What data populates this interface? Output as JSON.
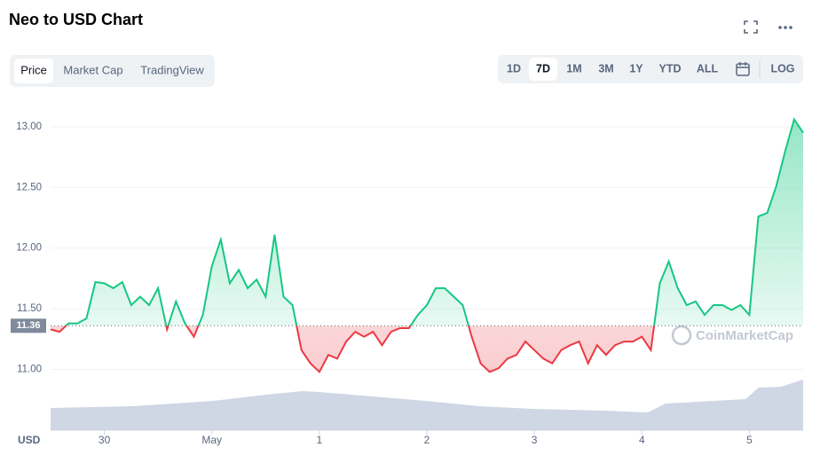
{
  "header": {
    "title": "Neo to USD Chart"
  },
  "tabs": {
    "items": [
      "Price",
      "Market Cap",
      "TradingView"
    ],
    "active": 0
  },
  "ranges": {
    "items": [
      "1D",
      "7D",
      "1M",
      "3M",
      "1Y",
      "YTD",
      "ALL"
    ],
    "active": 1,
    "log": "LOG"
  },
  "watermark": "CoinMarketCap",
  "chart_data": {
    "type": "line",
    "y_label": "USD",
    "x": [
      0,
      2,
      4,
      6,
      8,
      10,
      12,
      14,
      16,
      18,
      20,
      22,
      24,
      26,
      28,
      30,
      32,
      34,
      36,
      38,
      40,
      42,
      44,
      46,
      48,
      50,
      52,
      54,
      56,
      58,
      60,
      62,
      64,
      66,
      68,
      70,
      72,
      74,
      76,
      78,
      80,
      82,
      84,
      86,
      88,
      90,
      92,
      94,
      96,
      98,
      100,
      102,
      104,
      106,
      108,
      110,
      112,
      114,
      116,
      118,
      120,
      122,
      124,
      126,
      128,
      130,
      132,
      134,
      136,
      138,
      140,
      142,
      144,
      146,
      148,
      150,
      152,
      154,
      156,
      158,
      160,
      162,
      164,
      166,
      168
    ],
    "series": [
      {
        "name": "Price",
        "color_up": "#16c784",
        "color_down": "#ea3943",
        "values": [
          11.33,
          11.31,
          11.38,
          11.38,
          11.42,
          11.72,
          11.71,
          11.67,
          11.72,
          11.53,
          11.6,
          11.53,
          11.67,
          11.33,
          11.56,
          11.38,
          11.27,
          11.45,
          11.85,
          12.07,
          11.71,
          11.82,
          11.67,
          11.74,
          11.6,
          12.11,
          11.6,
          11.53,
          11.16,
          11.05,
          10.98,
          11.12,
          11.09,
          11.23,
          11.31,
          11.27,
          11.31,
          11.2,
          11.31,
          11.34,
          11.34,
          11.45,
          11.53,
          11.67,
          11.67,
          11.6,
          11.53,
          11.27,
          11.05,
          10.98,
          11.01,
          11.09,
          11.12,
          11.23,
          11.16,
          11.09,
          11.05,
          11.16,
          11.2,
          11.23,
          11.05,
          11.2,
          11.12,
          11.2,
          11.23,
          11.23,
          11.27,
          11.16,
          11.71,
          11.89,
          11.67,
          11.53,
          11.56,
          11.45,
          11.53,
          11.53,
          11.49,
          11.53,
          11.45,
          12.26,
          12.29,
          12.51,
          12.8,
          13.06,
          12.95
        ]
      }
    ],
    "reference": 11.36,
    "xlim": [
      0,
      168
    ],
    "xticks": [
      {
        "value": 12,
        "label": "30"
      },
      {
        "value": 36,
        "label": "May"
      },
      {
        "value": 60,
        "label": "1"
      },
      {
        "value": 84,
        "label": "2"
      },
      {
        "value": 108,
        "label": "3"
      },
      {
        "value": 132,
        "label": "4"
      },
      {
        "value": 156,
        "label": "5"
      }
    ],
    "ylim": [
      10.5,
      13.24
    ],
    "yticks": [
      {
        "value": 11,
        "label": "11.00"
      },
      {
        "value": 11.5,
        "label": "11.50"
      },
      {
        "value": 12,
        "label": "12.00"
      },
      {
        "value": 12.5,
        "label": "12.50"
      },
      {
        "value": 13,
        "label": "13.00"
      }
    ],
    "grid": true
  }
}
